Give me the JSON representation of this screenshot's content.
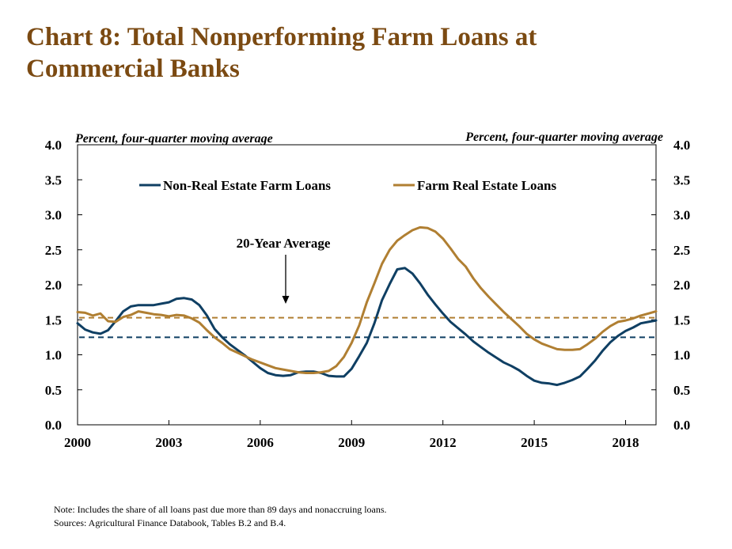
{
  "title_lines": [
    "Chart 8: Total Nonperforming Farm Loans at",
    "Commercial Banks"
  ],
  "colors": {
    "title": "#7b4a12",
    "non_real_estate": "#0f3f63",
    "farm_real_estate": "#b07f32"
  },
  "chart_data": {
    "type": "line",
    "left_axis_label": "Percent, four-quarter moving average",
    "right_axis_label": "Percent, four-quarter moving average",
    "ylim": [
      0,
      4
    ],
    "yticks": [
      "0.0",
      "0.5",
      "1.0",
      "1.5",
      "2.0",
      "2.5",
      "3.0",
      "3.5",
      "4.0"
    ],
    "xlim": [
      2000,
      2019
    ],
    "xticks": [
      "2000",
      "2003",
      "2006",
      "2009",
      "2012",
      "2015",
      "2018"
    ],
    "grid": false,
    "legend_position": "top",
    "annotation": "20-Year Average",
    "reference_lines": [
      {
        "series": "Non-Real Estate Farm Loans",
        "y": 1.25
      },
      {
        "series": "Farm Real Estate Loans",
        "y": 1.53
      }
    ],
    "series": [
      {
        "name": "Non-Real Estate Farm Loans",
        "x": [
          2000.0,
          2000.25,
          2000.5,
          2000.75,
          2001.0,
          2001.25,
          2001.5,
          2001.75,
          2002.0,
          2002.25,
          2002.5,
          2002.75,
          2003.0,
          2003.25,
          2003.5,
          2003.75,
          2004.0,
          2004.25,
          2004.5,
          2004.75,
          2005.0,
          2005.25,
          2005.5,
          2005.75,
          2006.0,
          2006.25,
          2006.5,
          2006.75,
          2007.0,
          2007.25,
          2007.5,
          2007.75,
          2008.0,
          2008.25,
          2008.5,
          2008.75,
          2009.0,
          2009.25,
          2009.5,
          2009.75,
          2010.0,
          2010.25,
          2010.5,
          2010.75,
          2011.0,
          2011.25,
          2011.5,
          2011.75,
          2012.0,
          2012.25,
          2012.5,
          2012.75,
          2013.0,
          2013.25,
          2013.5,
          2013.75,
          2014.0,
          2014.25,
          2014.5,
          2014.75,
          2015.0,
          2015.25,
          2015.5,
          2015.75,
          2016.0,
          2016.25,
          2016.5,
          2016.75,
          2017.0,
          2017.25,
          2017.5,
          2017.75,
          2018.0,
          2018.25,
          2018.5,
          2018.75,
          2019.0
        ],
        "y": [
          1.45,
          1.36,
          1.32,
          1.3,
          1.35,
          1.48,
          1.62,
          1.69,
          1.71,
          1.71,
          1.71,
          1.73,
          1.75,
          1.8,
          1.81,
          1.79,
          1.71,
          1.56,
          1.37,
          1.25,
          1.15,
          1.07,
          0.99,
          0.9,
          0.81,
          0.74,
          0.71,
          0.7,
          0.71,
          0.75,
          0.76,
          0.76,
          0.74,
          0.7,
          0.69,
          0.69,
          0.8,
          0.98,
          1.17,
          1.45,
          1.78,
          2.01,
          2.22,
          2.24,
          2.16,
          2.02,
          1.86,
          1.72,
          1.59,
          1.47,
          1.38,
          1.29,
          1.19,
          1.11,
          1.03,
          0.96,
          0.89,
          0.84,
          0.78,
          0.7,
          0.63,
          0.6,
          0.59,
          0.57,
          0.6,
          0.64,
          0.69,
          0.8,
          0.92,
          1.06,
          1.18,
          1.27,
          1.34,
          1.39,
          1.45,
          1.47,
          1.49
        ]
      },
      {
        "name": "Farm Real Estate Loans",
        "x": [
          2000.0,
          2000.25,
          2000.5,
          2000.75,
          2001.0,
          2001.25,
          2001.5,
          2001.75,
          2002.0,
          2002.25,
          2002.5,
          2002.75,
          2003.0,
          2003.25,
          2003.5,
          2003.75,
          2004.0,
          2004.25,
          2004.5,
          2004.75,
          2005.0,
          2005.25,
          2005.5,
          2005.75,
          2006.0,
          2006.25,
          2006.5,
          2006.75,
          2007.0,
          2007.25,
          2007.5,
          2007.75,
          2008.0,
          2008.25,
          2008.5,
          2008.75,
          2009.0,
          2009.25,
          2009.5,
          2009.75,
          2010.0,
          2010.25,
          2010.5,
          2010.75,
          2011.0,
          2011.25,
          2011.5,
          2011.75,
          2012.0,
          2012.25,
          2012.5,
          2012.75,
          2013.0,
          2013.25,
          2013.5,
          2013.75,
          2014.0,
          2014.25,
          2014.5,
          2014.75,
          2015.0,
          2015.25,
          2015.5,
          2015.75,
          2016.0,
          2016.25,
          2016.5,
          2016.75,
          2017.0,
          2017.25,
          2017.5,
          2017.75,
          2018.0,
          2018.25,
          2018.5,
          2018.75,
          2019.0
        ],
        "y": [
          1.61,
          1.6,
          1.56,
          1.59,
          1.48,
          1.47,
          1.54,
          1.57,
          1.62,
          1.6,
          1.58,
          1.57,
          1.55,
          1.57,
          1.56,
          1.52,
          1.46,
          1.35,
          1.25,
          1.17,
          1.08,
          1.03,
          0.98,
          0.93,
          0.89,
          0.85,
          0.81,
          0.79,
          0.77,
          0.75,
          0.74,
          0.74,
          0.75,
          0.77,
          0.84,
          0.97,
          1.17,
          1.42,
          1.75,
          2.02,
          2.3,
          2.5,
          2.63,
          2.71,
          2.78,
          2.82,
          2.81,
          2.76,
          2.66,
          2.52,
          2.37,
          2.26,
          2.09,
          1.95,
          1.83,
          1.72,
          1.61,
          1.51,
          1.41,
          1.3,
          1.22,
          1.16,
          1.12,
          1.08,
          1.07,
          1.07,
          1.08,
          1.15,
          1.23,
          1.33,
          1.41,
          1.47,
          1.49,
          1.52,
          1.56,
          1.59,
          1.62
        ]
      }
    ]
  },
  "notes": {
    "note": "Note: Includes the share of all loans past due more than 89 days and nonaccruing loans.",
    "sources": "Sources: Agricultural Finance Databook, Tables B.2 and B.4."
  }
}
